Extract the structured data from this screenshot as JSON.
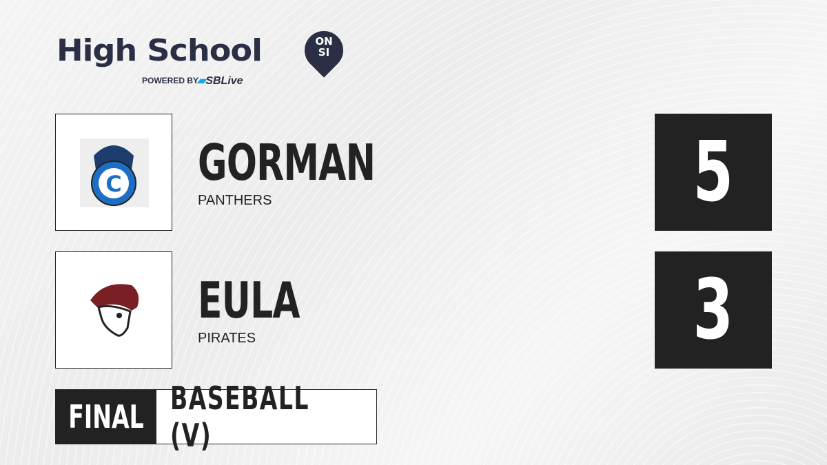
{
  "brand": {
    "title": "High School",
    "badge_line1": "ON",
    "badge_line2": "SI",
    "powered_by": "POWERED BY",
    "partner": "SBLive"
  },
  "teams": [
    {
      "name": "GORMAN",
      "mascot": "PANTHERS",
      "score": "5",
      "logo": "panther-logo",
      "color": "#1c6fc4"
    },
    {
      "name": "EULA",
      "mascot": "PIRATES",
      "score": "3",
      "logo": "pirate-logo",
      "color": "#7a1f24"
    }
  ],
  "game": {
    "status": "FINAL",
    "sport": "BASEBALL (V)"
  }
}
